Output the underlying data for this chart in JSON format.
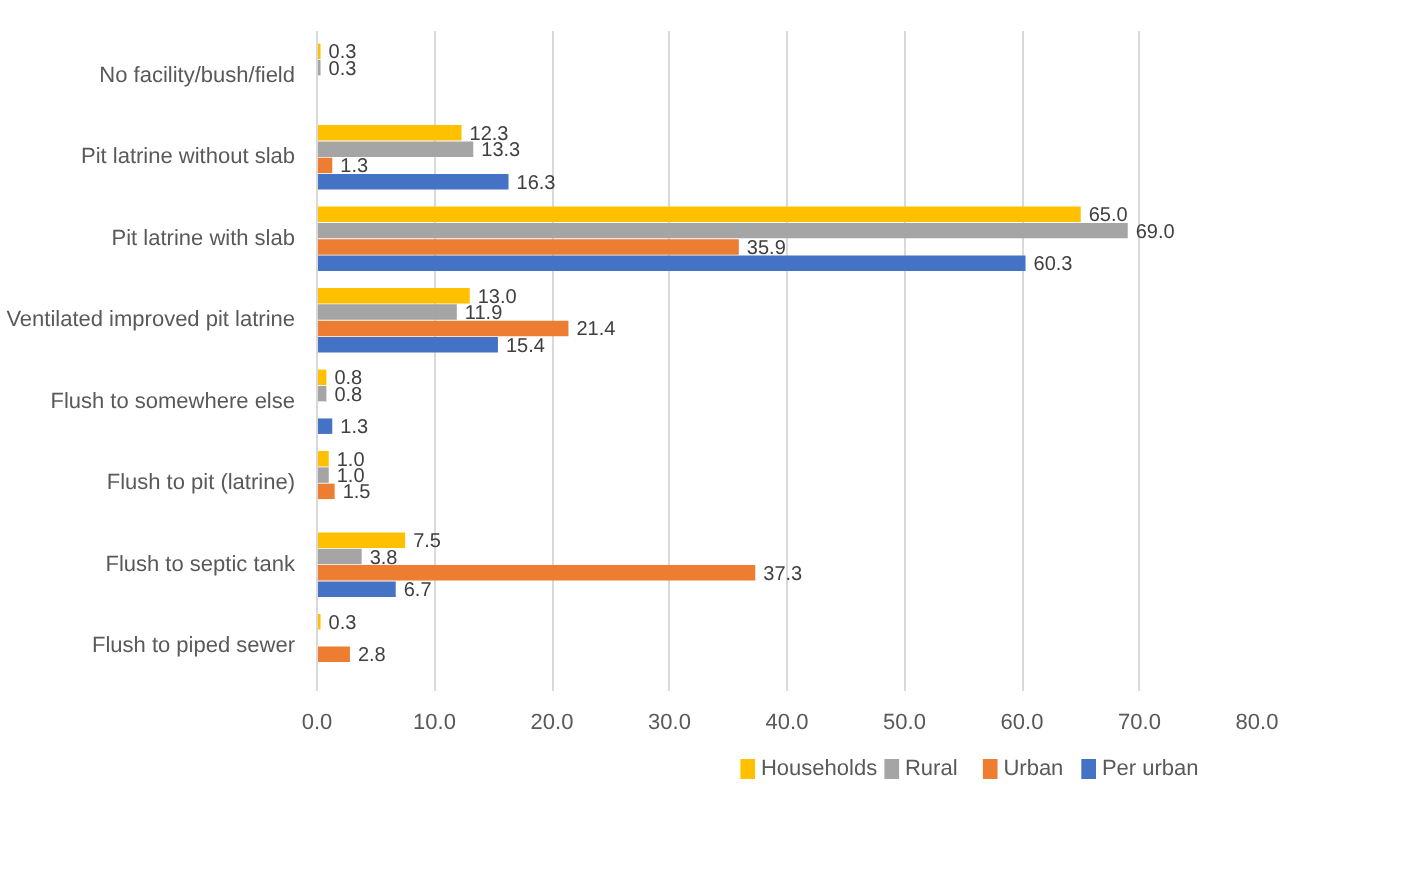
{
  "chart_data": {
    "type": "bar",
    "orientation": "horizontal",
    "categories": [
      "No facility/bush/field",
      "Pit latrine without slab",
      "Pit latrine with slab",
      "Ventilated improved pit latrine",
      "Flush to somewhere else",
      "Flush to pit (latrine)",
      "Flush to septic tank",
      "Flush to piped sewer"
    ],
    "series": [
      {
        "name": "Households",
        "color": "#ffc000",
        "values": [
          0.3,
          12.3,
          65.0,
          13.0,
          0.8,
          1.0,
          7.5,
          0.3
        ],
        "value_labels": [
          "0.3",
          "12.3",
          "65.0",
          "13.0",
          "0.8",
          "1.0",
          "7.5",
          "0.3"
        ]
      },
      {
        "name": "Rural",
        "color": "#a5a5a5",
        "values": [
          0.3,
          13.3,
          69.0,
          11.9,
          0.8,
          1.0,
          3.8,
          null
        ],
        "value_labels": [
          "0.3",
          "13.3",
          "69.0",
          "11.9",
          "0.8",
          "1.0",
          "3.8",
          null
        ]
      },
      {
        "name": "Urban",
        "color": "#ed7d31",
        "values": [
          null,
          1.3,
          35.9,
          21.4,
          null,
          1.5,
          37.3,
          2.8
        ],
        "value_labels": [
          null,
          "1.3",
          "35.9",
          "21.4",
          null,
          "1.5",
          "37.3",
          "2.8"
        ]
      },
      {
        "name": "Per urban",
        "color": "#4472c4",
        "values": [
          null,
          16.3,
          60.3,
          15.4,
          1.3,
          null,
          6.7,
          null
        ],
        "value_labels": [
          null,
          "16.3",
          "60.3",
          "15.4",
          "1.3",
          null,
          "6.7",
          null
        ]
      }
    ],
    "xlim": [
      0,
      80
    ],
    "xticks": [
      {
        "value": 0,
        "label": "0.0"
      },
      {
        "value": 10,
        "label": "10.0"
      },
      {
        "value": 20,
        "label": "20.0"
      },
      {
        "value": 30,
        "label": "30.0"
      },
      {
        "value": 40,
        "label": "40.0"
      },
      {
        "value": 50,
        "label": "50.0"
      },
      {
        "value": 60,
        "label": "60.0"
      },
      {
        "value": 70,
        "label": "70.0"
      },
      {
        "value": 80,
        "label": "80.0"
      }
    ],
    "grid": "x",
    "legend": "bottom"
  }
}
